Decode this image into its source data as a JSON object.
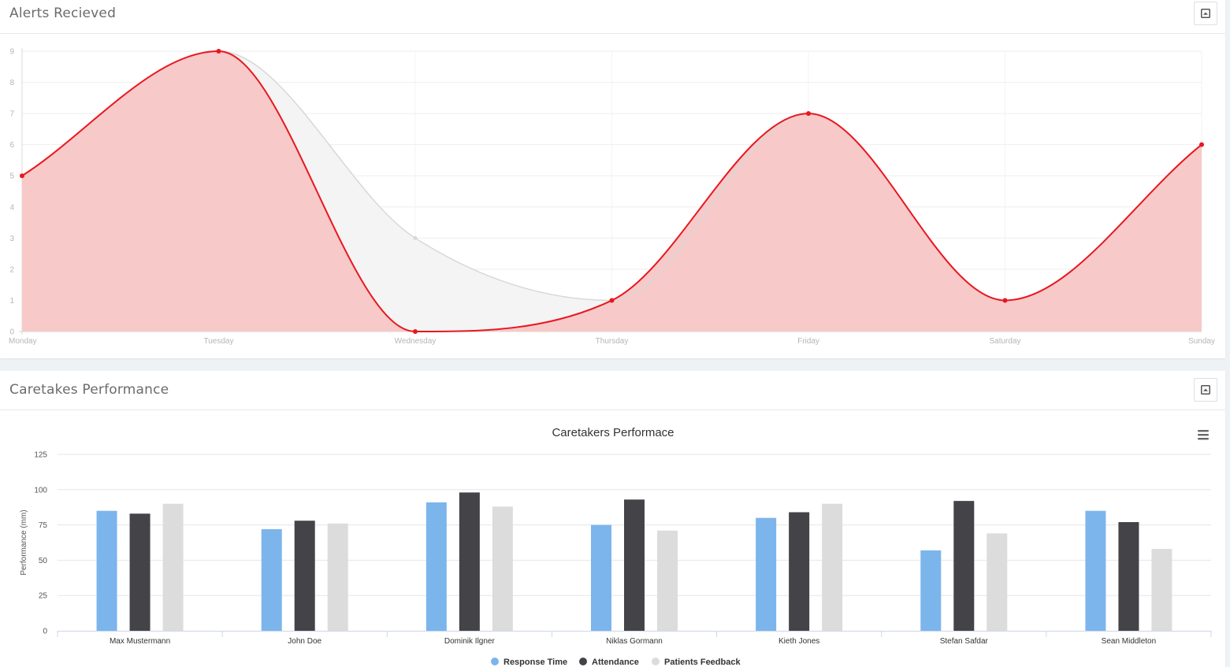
{
  "panels": {
    "alerts": {
      "title": "Alerts Recieved",
      "collapse_icon": "collapse-icon"
    },
    "performance": {
      "title": "Caretakes Performance",
      "collapse_icon": "collapse-icon"
    }
  },
  "colors": {
    "alerts_line": "#e8171f",
    "alerts_fill": "#f7c6c6",
    "prev_line": "#d8d8d8",
    "prev_fill": "#f4f4f4",
    "response_time": "#7cb5ec",
    "attendance": "#434348",
    "patients_feedback": "#dcdcdc"
  },
  "chart_data": [
    {
      "type": "line",
      "title": "",
      "categories": [
        "Monday",
        "Tuesday",
        "Wednesday",
        "Thursday",
        "Friday",
        "Saturday",
        "Sunday"
      ],
      "series": [
        {
          "values": [
            5,
            9,
            0,
            1,
            7,
            1,
            6
          ],
          "color": "#e8171f"
        },
        {
          "values": [
            5,
            9,
            3,
            1,
            7,
            1,
            6
          ],
          "color": "#d8d8d8"
        }
      ],
      "yticks": [
        0,
        1,
        2,
        3,
        4,
        5,
        6,
        7,
        8,
        9
      ],
      "ylim": [
        0,
        9
      ],
      "grid": true,
      "area": true
    },
    {
      "type": "bar",
      "title": "Caretakers Performace",
      "ylabel": "Performance (mm)",
      "categories": [
        "Max Mustermann",
        "John Doe",
        "Dominik Ilgner",
        "Niklas Gormann",
        "Kieth Jones",
        "Stefan Safdar",
        "Sean Middleton"
      ],
      "series": [
        {
          "name": "Response Time",
          "values": [
            85,
            72,
            91,
            75,
            80,
            57,
            85
          ]
        },
        {
          "name": "Attendance",
          "values": [
            83,
            78,
            98,
            93,
            84,
            92,
            77
          ]
        },
        {
          "name": "Patients Feedback",
          "values": [
            90,
            76,
            88,
            71,
            90,
            69,
            58
          ]
        }
      ],
      "yticks": [
        0,
        25,
        50,
        75,
        100,
        125
      ],
      "ylim": [
        0,
        125
      ],
      "grid": true,
      "legend": "bottom-center",
      "menu_icon": "hamburger-menu-icon"
    }
  ]
}
